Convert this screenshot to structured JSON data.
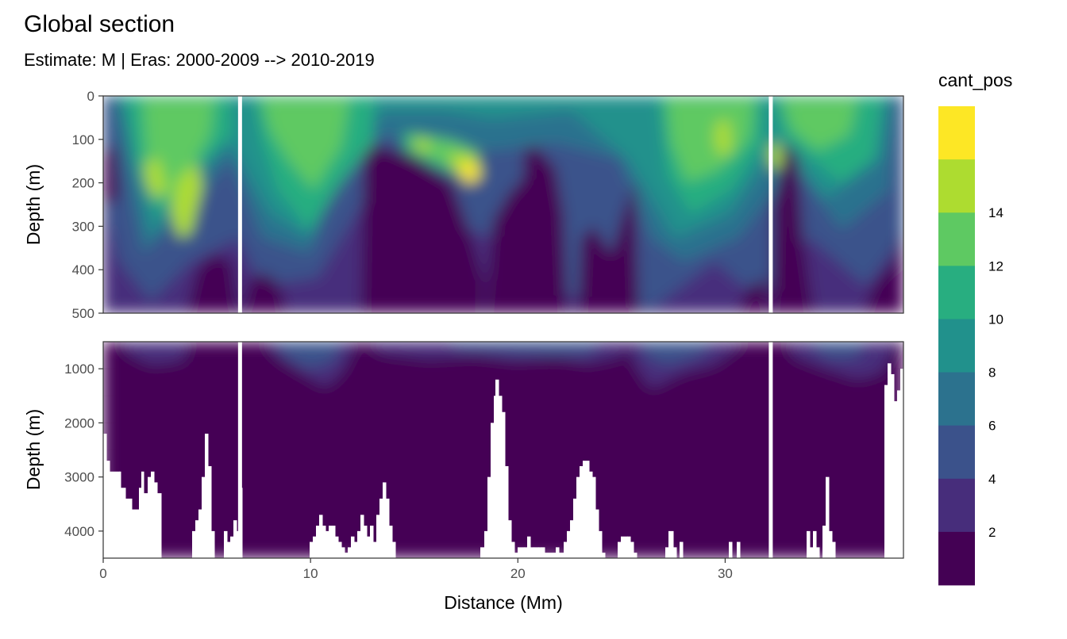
{
  "chart_data": {
    "type": "heatmap",
    "title": "Global section",
    "subtitle": "Estimate: M  | Eras: 2000-2009 --> 2010-2019",
    "xlabel": "Distance (Mm)",
    "ylabel": "Depth (m)",
    "legend": {
      "title": "cant_pos",
      "position": "right",
      "breaks": [
        2,
        4,
        6,
        8,
        10,
        12,
        14
      ],
      "colors": [
        "#440154",
        "#472d7b",
        "#3b528b",
        "#2c728e",
        "#21918c",
        "#28ae80",
        "#5ec962",
        "#addc30",
        "#fde725"
      ]
    },
    "xlim": [
      0,
      38.6
    ],
    "x_ticks": [
      0,
      10,
      20,
      30
    ],
    "panels": [
      {
        "name": "upper",
        "ylim": [
          0,
          500
        ],
        "y_ticks": [
          0,
          100,
          200,
          300,
          400,
          500
        ],
        "reversed": true
      },
      {
        "name": "lower",
        "ylim": [
          500,
          4500
        ],
        "y_ticks": [
          1000,
          2000,
          3000,
          4000
        ],
        "reversed": true
      }
    ],
    "section_breaks_mm": [
      6.6,
      32.2
    ],
    "grid": true
  }
}
